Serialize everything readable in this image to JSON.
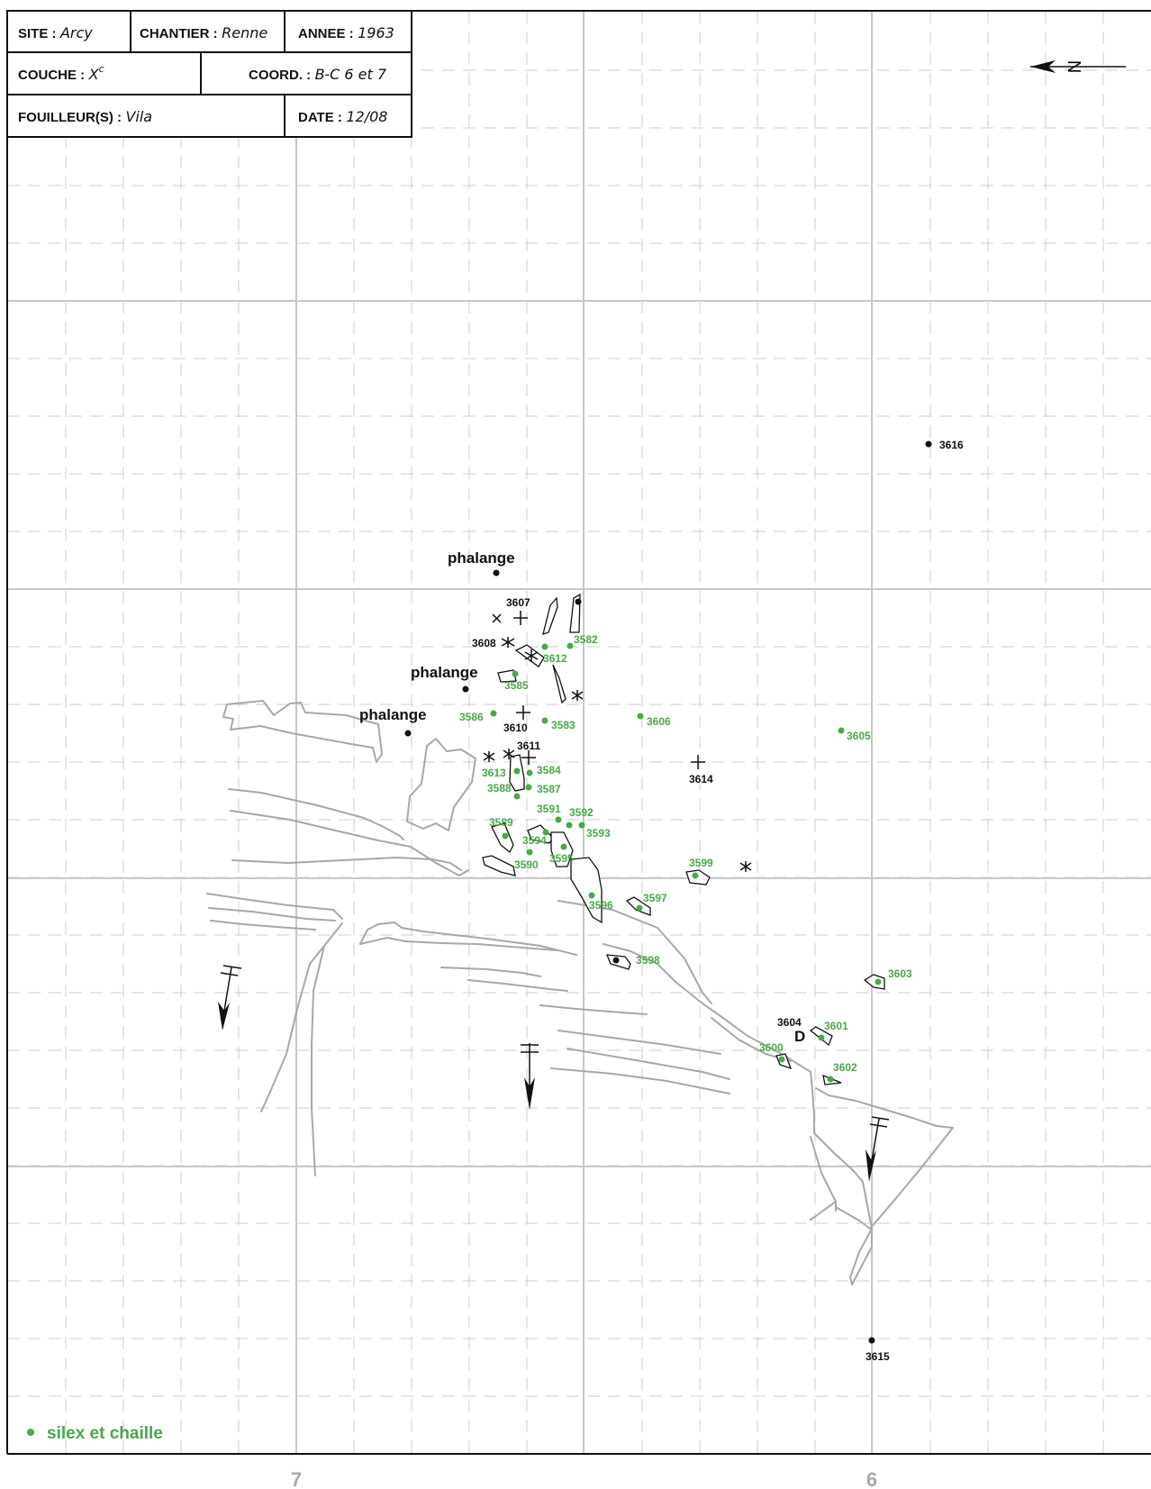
{
  "header": {
    "site_label": "SITE :",
    "site_value": "Arcy",
    "chantier_label": "CHANTIER :",
    "chantier_value": "Renne",
    "annee_label": "ANNEE :",
    "annee_value": "1963",
    "couche_label": "COUCHE :",
    "couche_value": "X",
    "couche_sup": "c",
    "coord_label": "COORD. :",
    "coord_value": "B-C 6 et 7",
    "fouilleur_label": "FOUILLEUR(S) :",
    "fouilleur_value": "Vila",
    "date_label": "DATE :",
    "date_value": "12/08"
  },
  "north_letter": "N",
  "axis_labels": {
    "left": "7",
    "right": "6"
  },
  "legend": {
    "label": "silex et chaille",
    "color": "#4aa84a"
  },
  "colors": {
    "silex": "#4aa84a",
    "black": "#111111",
    "grid": "#c8c8c8",
    "rock": "#a8a8a8"
  },
  "annotations": {
    "phalange_1": "phalange",
    "phalange_2": "phalange",
    "phalange_3": "phalange",
    "d_marker": "D"
  },
  "black_finds": {
    "f3607": "3607",
    "f3608": "3608",
    "f3610": "3610",
    "f3611": "3611",
    "f3614": "3614",
    "f3604": "3604",
    "f3616": "3616",
    "f3615": "3615"
  },
  "silex_finds": {
    "f3582": "3582",
    "f3612": "3612",
    "f3585": "3585",
    "f3586": "3586",
    "f3583": "3583",
    "f3606": "3606",
    "f3605": "3605",
    "f3613": "3613",
    "f3584": "3584",
    "f3588": "3588",
    "f3587": "3587",
    "f3591": "3591",
    "f3592": "3592",
    "f3589": "3589",
    "f3593": "3593",
    "f3594": "3594",
    "f3595": "3595",
    "f3590": "3590",
    "f3599": "3599",
    "f3596": "3596",
    "f3597": "3597",
    "f3598": "3598",
    "f3603": "3603",
    "f3601": "3601",
    "f3600": "3600",
    "f3602": "3602"
  }
}
